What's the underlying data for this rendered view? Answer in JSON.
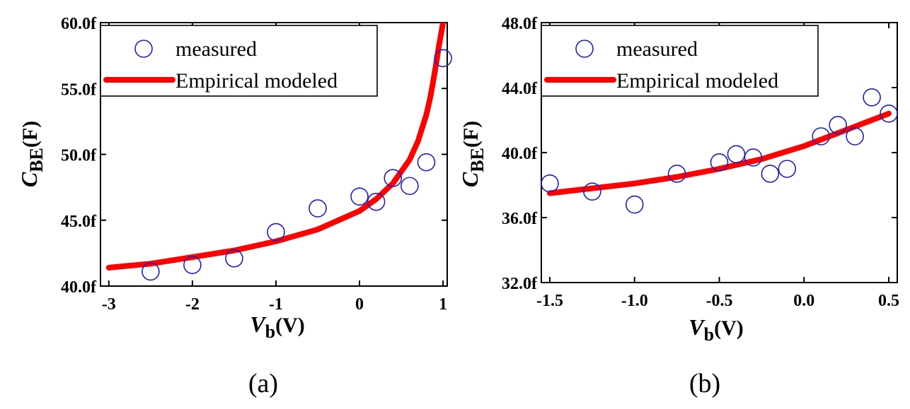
{
  "chart_data": [
    {
      "type": "scatter",
      "panel_label": "(a)",
      "xlabel": {
        "main": "V",
        "sub": "b",
        "unit": "(V)"
      },
      "ylabel": {
        "main": "C",
        "sub": "BE",
        "unit": "(F)"
      },
      "xlim": [
        -3.1,
        1.05
      ],
      "ylim": [
        40.0,
        60.0
      ],
      "xticks": [
        -3,
        -2,
        -1,
        0,
        1
      ],
      "xtick_labels": [
        "-3",
        "-2",
        "-1",
        "0",
        "1"
      ],
      "yticks": [
        40,
        45,
        50,
        55,
        60
      ],
      "ytick_labels": [
        "40.0f",
        "45.0f",
        "50.0f",
        "55.0f",
        "60.0f"
      ],
      "legend": {
        "position": "top-left",
        "entries": [
          "measured",
          "Empirical modeled"
        ]
      },
      "series": [
        {
          "name": "measured",
          "kind": "markers",
          "color": "#1f1fbf",
          "x": [
            -2.5,
            -2.0,
            -1.5,
            -1.0,
            -0.5,
            0.0,
            0.2,
            0.4,
            0.6,
            0.8,
            1.0
          ],
          "y": [
            41.1,
            41.6,
            42.1,
            44.1,
            45.9,
            46.8,
            46.4,
            48.2,
            47.6,
            49.4,
            57.3
          ]
        },
        {
          "name": "Empirical modeled",
          "kind": "line",
          "color": "#ff0000",
          "x": [
            -3.0,
            -2.5,
            -2.0,
            -1.5,
            -1.0,
            -0.5,
            0.0,
            0.2,
            0.4,
            0.6,
            0.7,
            0.8,
            0.85,
            0.9,
            0.95,
            1.0
          ],
          "y": [
            41.4,
            41.7,
            42.2,
            42.7,
            43.4,
            44.3,
            45.7,
            46.6,
            47.8,
            49.6,
            51.0,
            53.0,
            54.4,
            56.2,
            58.2,
            60.0
          ]
        }
      ]
    },
    {
      "type": "scatter",
      "panel_label": "(b)",
      "xlabel": {
        "main": "V",
        "sub": "b",
        "unit": "(V)"
      },
      "ylabel": {
        "main": "C",
        "sub": "BE",
        "unit": "(F)"
      },
      "xlim": [
        -1.55,
        0.55
      ],
      "ylim": [
        32.0,
        48.0
      ],
      "xticks": [
        -1.5,
        -1.0,
        -0.5,
        0.0,
        0.5
      ],
      "xtick_labels": [
        "-1.5",
        "-1.0",
        "-0.5",
        "0.0",
        "0.5"
      ],
      "yticks": [
        32,
        36,
        40,
        44,
        48
      ],
      "ytick_labels": [
        "32.0f",
        "36.0f",
        "40.0f",
        "44.0f",
        "48.0f"
      ],
      "legend": {
        "position": "top-left",
        "entries": [
          "measured",
          "Empirical modeled"
        ]
      },
      "series": [
        {
          "name": "measured",
          "kind": "markers",
          "color": "#1f1fbf",
          "x": [
            -1.5,
            -1.25,
            -1.0,
            -0.75,
            -0.5,
            -0.4,
            -0.3,
            -0.2,
            -0.1,
            0.1,
            0.2,
            0.3,
            0.4,
            0.5
          ],
          "y": [
            38.1,
            37.6,
            36.8,
            38.7,
            39.4,
            39.9,
            39.7,
            38.7,
            39.0,
            41.0,
            41.7,
            41.0,
            43.4,
            42.4
          ]
        },
        {
          "name": "Empirical modeled",
          "kind": "line",
          "color": "#ff0000",
          "x": [
            -1.5,
            -1.25,
            -1.0,
            -0.75,
            -0.5,
            -0.25,
            0.0,
            0.1,
            0.2,
            0.3,
            0.4,
            0.5
          ],
          "y": [
            37.5,
            37.8,
            38.1,
            38.5,
            39.0,
            39.6,
            40.4,
            40.8,
            41.2,
            41.6,
            42.0,
            42.4
          ]
        }
      ]
    }
  ]
}
